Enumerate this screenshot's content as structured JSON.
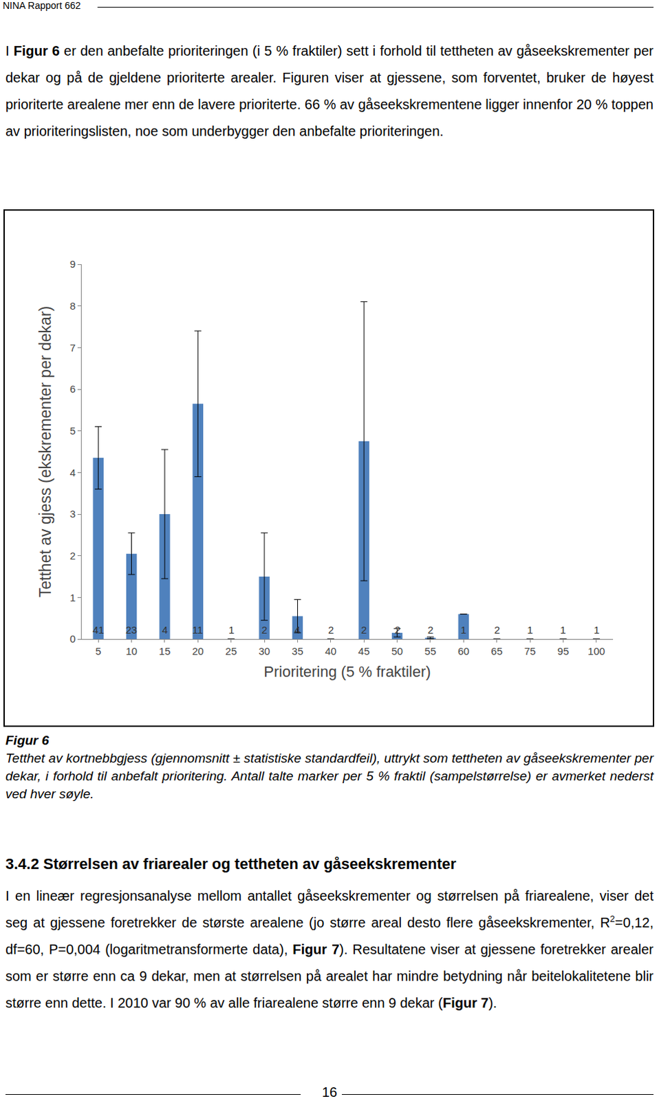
{
  "header": "NINA Rapport 662",
  "intro": [
    {
      "text": "I "
    },
    {
      "text": "Figur 6",
      "bold": true
    },
    {
      "text": " er den anbefalte prioriteringen (i 5 % fraktiler) sett i forhold til tettheten av gåseekskrementer per dekar og på de gjeldene prioriterte arealer. Figuren viser at gjessene, som forventet, bruker de høyest prioriterte arealene mer enn de lavere prioriterte. 66 % av gåseekskrementene ligger innenfor 20 % toppen av prioriteringslisten, noe som underbygger den anbefalte prioriteringen."
    }
  ],
  "chart_data": {
    "type": "bar",
    "xlabel": "Prioritering (5 % fraktiler)",
    "ylabel": "Tetthet av gjess (ekskrementer per dekar)",
    "categories": [
      "5",
      "10",
      "15",
      "20",
      "25",
      "30",
      "35",
      "40",
      "45",
      "50",
      "55",
      "60",
      "65",
      "75",
      "95",
      "100"
    ],
    "values": [
      4.35,
      2.05,
      3.0,
      5.65,
      0,
      1.5,
      0.55,
      0,
      4.75,
      0.15,
      0.03,
      0.6,
      0,
      0,
      0,
      0
    ],
    "standard_errors": [
      0.75,
      0.5,
      1.55,
      1.75,
      0,
      1.05,
      0.4,
      0,
      3.35,
      0.1,
      0.02,
      0,
      0,
      0,
      0,
      0
    ],
    "sample_sizes": [
      "41",
      "23",
      "4",
      "11",
      "1",
      "2",
      "4",
      "2",
      "2",
      "2",
      "2",
      "1",
      "2",
      "1",
      "1",
      "1"
    ],
    "color": "#4f81bd",
    "ylim": [
      0,
      9
    ],
    "yticks": [
      0,
      1,
      2,
      3,
      4,
      5,
      6,
      7,
      8,
      9
    ],
    "grid": false
  },
  "caption": {
    "label": "Figur 6",
    "text": "Tetthet av kortnebbgjess (gjennomsnitt ± statistiske standardfeil), uttrykt som tettheten av gåseekskrementer per dekar, i forhold til anbefalt prioritering. Antall talte marker per 5 % fraktil (sampelstørrelse) er avmerket nederst ved hver søyle."
  },
  "section": "3.4.2 Størrelsen av friarealer og tettheten av gåseekskrementer",
  "body": [
    {
      "text": "I en lineær regresjonsanalyse mellom antallet gåseekskrementer og størrelsen på friarealene, viser det seg at gjessene foretrekker de største arealene (jo større areal desto flere gåseekskrementer, R"
    },
    {
      "text": "2",
      "sup": true
    },
    {
      "text": "=0,12, df=60, P=0,004 (logaritmetransformerte data), "
    },
    {
      "text": "Figur 7",
      "bold": true
    },
    {
      "text": "). Resultatene viser at gjessene foretrekker arealer som er større enn ca 9 dekar, men at størrelsen på arealet har mindre betydning når beitelokalitetene blir større enn dette. I 2010 var 90 % av alle friarealene større enn 9 dekar ("
    },
    {
      "text": "Figur 7",
      "bold": true
    },
    {
      "text": ")."
    }
  ],
  "page_number": "16"
}
